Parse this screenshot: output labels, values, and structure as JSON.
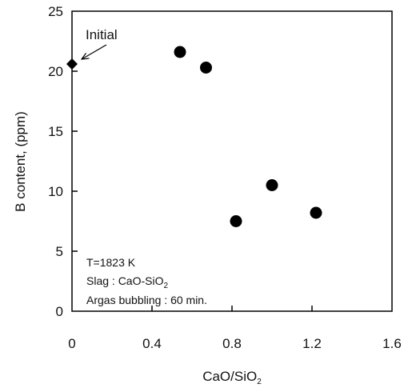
{
  "chart_data": {
    "type": "scatter",
    "xlabel_main": "CaO/SiO",
    "xlabel_sub": "2",
    "ylabel": "B content, (ppm)",
    "xlim": [
      0,
      1.6
    ],
    "ylim": [
      0,
      25
    ],
    "x_ticks": [
      "0",
      "0.4",
      "0.8",
      "1.2",
      "1.6"
    ],
    "y_ticks": [
      "0",
      "5",
      "10",
      "15",
      "20",
      "25"
    ],
    "grid": false,
    "series": [
      {
        "marker": "circle",
        "color": "#000000",
        "points": [
          {
            "x": 0.54,
            "y": 21.6
          },
          {
            "x": 0.67,
            "y": 20.3
          },
          {
            "x": 0.82,
            "y": 7.5
          },
          {
            "x": 1.0,
            "y": 10.5
          },
          {
            "x": 1.22,
            "y": 8.2
          }
        ]
      },
      {
        "marker": "diamond",
        "color": "#000000",
        "points": [
          {
            "x": 0.0,
            "y": 20.6
          }
        ]
      }
    ],
    "annotation": {
      "text": "Initial",
      "points_to": {
        "x": 0.0,
        "y": 20.6
      }
    },
    "notes": {
      "line1": "T=1823 K",
      "line2_main": "Slag : CaO-SiO",
      "line2_sub": "2",
      "line3": "Argas bubbling : 60 min."
    }
  }
}
